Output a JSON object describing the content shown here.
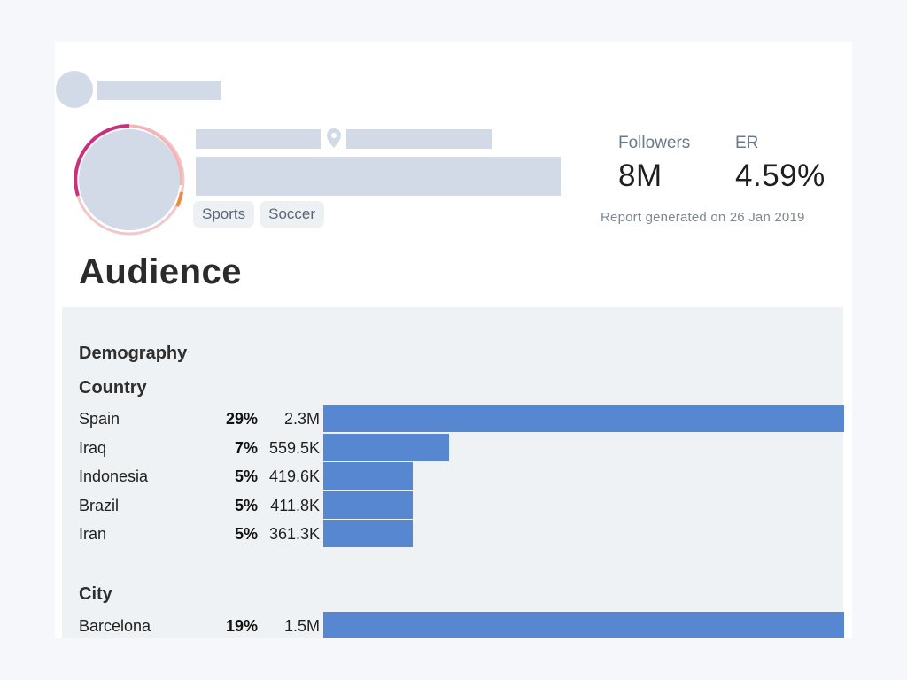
{
  "profile": {
    "tags": [
      "Sports",
      "Soccer"
    ],
    "icons": {
      "location": "location-pin-icon"
    }
  },
  "stats": {
    "followers_label": "Followers",
    "followers_value": "8M",
    "er_label": "ER",
    "er_value": "4.59%",
    "report_text": "Report generated on 26 Jan 2019"
  },
  "audience": {
    "title": "Audience",
    "demography_heading": "Demography",
    "country_heading": "Country",
    "city_heading": "City",
    "bar_color": "#5787d0",
    "countries": [
      {
        "name": "Spain",
        "pct": "29%",
        "count": "2.3M",
        "share": 29
      },
      {
        "name": "Iraq",
        "pct": "7%",
        "count": "559.5K",
        "share": 7
      },
      {
        "name": "Indonesia",
        "pct": "5%",
        "count": "419.6K",
        "share": 5
      },
      {
        "name": "Brazil",
        "pct": "5%",
        "count": "411.8K",
        "share": 5
      },
      {
        "name": "Iran",
        "pct": "5%",
        "count": "361.3K",
        "share": 5
      }
    ],
    "cities": [
      {
        "name": "Barcelona",
        "pct": "19%",
        "count": "1.5M",
        "share": 19
      }
    ]
  }
}
